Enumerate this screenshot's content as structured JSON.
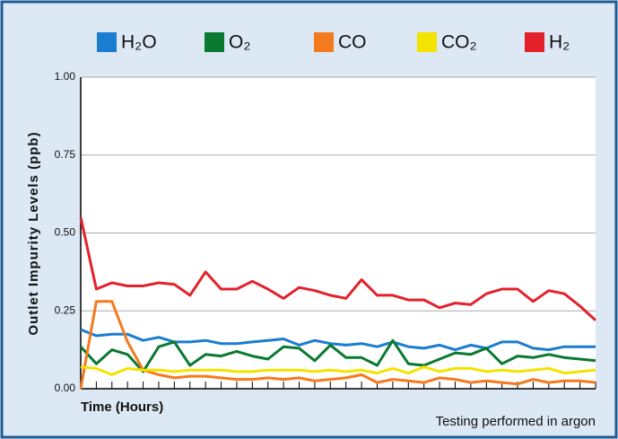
{
  "chart_data": {
    "type": "line",
    "ylabel": "Outlet Impurity Levels (ppb)",
    "xlabel": "Time (Hours)",
    "annotation": "Testing performed in argon",
    "categories": [
      null,
      null,
      null,
      null,
      null,
      null,
      null,
      null,
      null,
      null,
      null,
      null,
      null,
      null,
      null,
      null,
      null,
      null,
      null,
      null,
      null,
      null,
      null,
      null,
      null,
      null,
      null,
      null,
      null,
      null,
      null,
      null,
      null,
      null
    ],
    "ylim": [
      0,
      1
    ],
    "yticks": [
      {
        "value": 0,
        "label": "0.00"
      },
      {
        "value": 0.25,
        "label": "0.25"
      },
      {
        "value": 0.5,
        "label": "0.50"
      },
      {
        "value": 0.75,
        "label": "0.75"
      },
      {
        "value": 1,
        "label": "1.00"
      }
    ],
    "grid": true,
    "legend": "top",
    "series": [
      {
        "name": "H₂O",
        "color": "#1a7dd0",
        "values": [
          0.19,
          0.17,
          0.175,
          0.175,
          0.155,
          0.165,
          0.15,
          0.15,
          0.155,
          0.145,
          0.145,
          0.15,
          0.155,
          0.16,
          0.14,
          0.155,
          0.145,
          0.14,
          0.145,
          0.135,
          0.15,
          0.135,
          0.13,
          0.14,
          0.125,
          0.14,
          0.13,
          0.15,
          0.15,
          0.13,
          0.125,
          0.135,
          0.135,
          0.135
        ]
      },
      {
        "name": "O₂",
        "color": "#0a7a30",
        "values": [
          0.135,
          0.08,
          0.125,
          0.11,
          0.055,
          0.135,
          0.15,
          0.075,
          0.11,
          0.105,
          0.12,
          0.105,
          0.095,
          0.135,
          0.13,
          0.09,
          0.14,
          0.1,
          0.1,
          0.075,
          0.155,
          0.08,
          0.075,
          0.095,
          0.115,
          0.11,
          0.13,
          0.08,
          0.105,
          0.1,
          0.11,
          0.1,
          0.095,
          0.09
        ]
      },
      {
        "name": "CO",
        "color": "#f57a1e",
        "values": [
          0,
          0.28,
          0.28,
          0.15,
          0.06,
          0.045,
          0.035,
          0.04,
          0.04,
          0.035,
          0.03,
          0.03,
          0.035,
          0.03,
          0.035,
          0.025,
          0.03,
          0.035,
          0.045,
          0.02,
          0.03,
          0.025,
          0.02,
          0.035,
          0.03,
          0.02,
          0.025,
          0.02,
          0.015,
          0.03,
          0.02,
          0.025,
          0.025,
          0.02
        ]
      },
      {
        "name": "CO₂",
        "color": "#f2e400",
        "values": [
          0.07,
          0.065,
          0.045,
          0.065,
          0.06,
          0.06,
          0.055,
          0.06,
          0.06,
          0.06,
          0.055,
          0.055,
          0.06,
          0.06,
          0.06,
          0.055,
          0.06,
          0.055,
          0.06,
          0.05,
          0.065,
          0.05,
          0.07,
          0.055,
          0.065,
          0.065,
          0.055,
          0.06,
          0.055,
          0.06,
          0.065,
          0.05,
          0.055,
          0.06
        ]
      },
      {
        "name": "H₂",
        "color": "#e3212b",
        "values": [
          0.55,
          0.32,
          0.34,
          0.33,
          0.33,
          0.34,
          0.335,
          0.3,
          0.375,
          0.32,
          0.32,
          0.345,
          0.32,
          0.29,
          0.325,
          0.315,
          0.3,
          0.29,
          0.35,
          0.3,
          0.3,
          0.285,
          0.285,
          0.26,
          0.275,
          0.27,
          0.305,
          0.32,
          0.32,
          0.28,
          0.315,
          0.305,
          0.265,
          0.22
        ]
      }
    ]
  }
}
